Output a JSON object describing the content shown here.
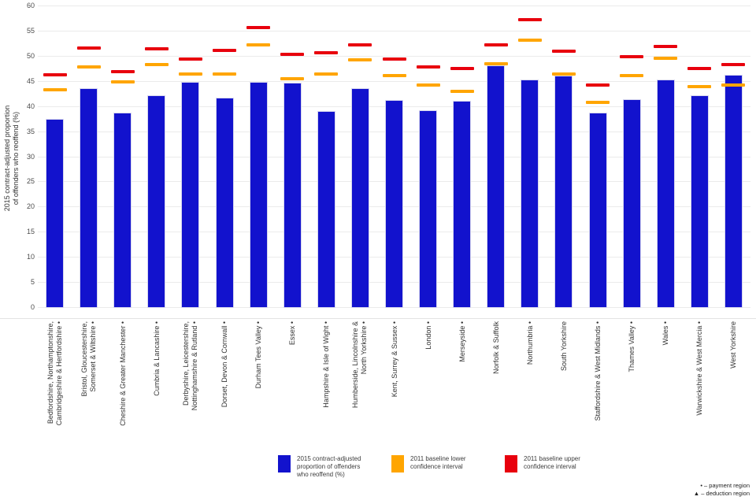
{
  "chart_data": {
    "type": "bar",
    "title": "",
    "ylabel": "2015 contract-adjusted proportion of offenders who reoffend (%)",
    "ylabel_lines": [
      "2015 contract-adjusted proportion",
      "of offenders who reoffend (%)"
    ],
    "xlabel": "",
    "ylim": [
      0,
      60
    ],
    "yticks": [
      0,
      5,
      10,
      15,
      20,
      25,
      30,
      35,
      40,
      45,
      50,
      55,
      60
    ],
    "grid": "horizontal",
    "legend_position": "bottom",
    "categories": [
      {
        "lines": [
          "Bedfordshire, Northamptonshire,",
          "Cambridgeshire & Hertfordshire"
        ],
        "marker": "payment"
      },
      {
        "lines": [
          "Bristol, Gloucestershire,",
          "Somerset & Wiltshire"
        ],
        "marker": "payment"
      },
      {
        "lines": [
          "Cheshire & Greater Manchester"
        ],
        "marker": "payment"
      },
      {
        "lines": [
          "Cumbria & Lancashire"
        ],
        "marker": "payment"
      },
      {
        "lines": [
          "Derbyshire, Leicestershire,",
          "Nottinghamshire & Rutland"
        ],
        "marker": "payment"
      },
      {
        "lines": [
          "Dorset, Devon & Cornwall"
        ],
        "marker": "payment"
      },
      {
        "lines": [
          "Durham Tees Valley"
        ],
        "marker": "payment"
      },
      {
        "lines": [
          "Essex"
        ],
        "marker": "payment"
      },
      {
        "lines": [
          "Hampshire & Isle of Wight"
        ],
        "marker": "payment"
      },
      {
        "lines": [
          "Humberside, Lincolnshire &",
          "North Yorkshire"
        ],
        "marker": "payment"
      },
      {
        "lines": [
          "Kent, Surrey & Sussex"
        ],
        "marker": "payment"
      },
      {
        "lines": [
          "London"
        ],
        "marker": "payment"
      },
      {
        "lines": [
          "Merseyside"
        ],
        "marker": "payment"
      },
      {
        "lines": [
          "Norfolk & Suffolk"
        ],
        "marker": ""
      },
      {
        "lines": [
          "Northumbria"
        ],
        "marker": "payment"
      },
      {
        "lines": [
          "South Yorkshire"
        ],
        "marker": ""
      },
      {
        "lines": [
          "Staffordshire & West Midlands"
        ],
        "marker": "payment"
      },
      {
        "lines": [
          "Thames Valley"
        ],
        "marker": "payment"
      },
      {
        "lines": [
          "Wales"
        ],
        "marker": "payment"
      },
      {
        "lines": [
          "Warwickshire & West Mercia"
        ],
        "marker": "payment"
      },
      {
        "lines": [
          "West Yorkshire"
        ],
        "marker": ""
      }
    ],
    "series": [
      {
        "name": "2015 contract-adjusted proportion of offenders who reoffend (%)",
        "type": "bar",
        "color": "#1212cd",
        "values": [
          37.6,
          43.7,
          38.8,
          42.3,
          45.0,
          41.9,
          44.9,
          44.8,
          39.2,
          43.7,
          41.4,
          39.4,
          41.2,
          48.3,
          45.5,
          46.2,
          38.9,
          41.5,
          45.4,
          42.3,
          46.3
        ]
      },
      {
        "name": "2011 baseline lower confidence interval",
        "type": "dash",
        "color": "#ffa500",
        "values": [
          43.4,
          47.9,
          44.9,
          48.4,
          46.5,
          46.6,
          52.3,
          45.6,
          46.6,
          49.4,
          46.2,
          44.4,
          43.1,
          48.6,
          53.3,
          46.6,
          40.9,
          46.2,
          49.6,
          44.1,
          44.4
        ]
      },
      {
        "name": "2011 baseline upper confidence interval",
        "type": "dash",
        "color": "#e8000d",
        "values": [
          46.3,
          51.7,
          47.0,
          51.6,
          49.5,
          51.2,
          55.7,
          50.5,
          50.8,
          52.4,
          49.5,
          47.9,
          47.7,
          52.3,
          57.4,
          51.0,
          44.3,
          49.9,
          52.0,
          47.7,
          48.4
        ]
      }
    ],
    "marker_glyphs": {
      "payment": "•",
      "deduction": "▲"
    },
    "footnotes": [
      "• – payment region",
      "▲ – deduction region"
    ]
  }
}
